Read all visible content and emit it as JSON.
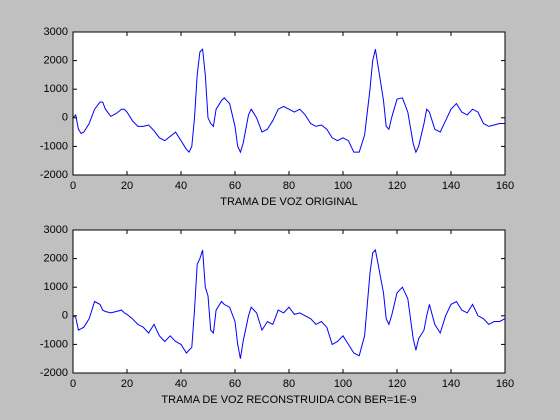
{
  "chart_data": [
    {
      "type": "line",
      "xlabel": "TRAMA DE VOZ ORIGINAL",
      "color": "#0000ff",
      "x": [
        0,
        1,
        2,
        3,
        4,
        6,
        8,
        10,
        11,
        12,
        14,
        16,
        18,
        19,
        20,
        22,
        24,
        26,
        28,
        30,
        32,
        34,
        36,
        38,
        40,
        42,
        43,
        44,
        45,
        46,
        47,
        48,
        49,
        50,
        51,
        52,
        53,
        55,
        56,
        58,
        60,
        61,
        62,
        63,
        65,
        66,
        68,
        70,
        72,
        74,
        76,
        78,
        80,
        82,
        84,
        86,
        88,
        90,
        92,
        94,
        96,
        98,
        100,
        102,
        104,
        106,
        108,
        110,
        111,
        112,
        113,
        115,
        116,
        117,
        118,
        120,
        122,
        124,
        126,
        127,
        128,
        130,
        131,
        132,
        134,
        136,
        138,
        140,
        142,
        144,
        146,
        148,
        150,
        152,
        154,
        156,
        158,
        160
      ],
      "values": [
        0,
        100,
        -400,
        -550,
        -500,
        -200,
        300,
        550,
        550,
        300,
        50,
        150,
        300,
        300,
        200,
        -100,
        -300,
        -300,
        -250,
        -450,
        -700,
        -800,
        -650,
        -500,
        -800,
        -1100,
        -1200,
        -1000,
        0,
        1500,
        2300,
        2400,
        1500,
        0,
        -200,
        -300,
        300,
        600,
        700,
        500,
        -300,
        -1000,
        -1200,
        -900,
        100,
        300,
        0,
        -500,
        -400,
        -100,
        300,
        400,
        300,
        200,
        300,
        100,
        -200,
        -300,
        -250,
        -400,
        -700,
        -800,
        -700,
        -800,
        -1200,
        -1200,
        -600,
        1000,
        2000,
        2400,
        1800,
        600,
        -300,
        -400,
        0,
        650,
        700,
        200,
        -900,
        -1200,
        -1000,
        -200,
        300,
        200,
        -400,
        -500,
        -100,
        300,
        500,
        200,
        100,
        300,
        200,
        -200,
        -300,
        -250,
        -200,
        -200
      ],
      "xlim": [
        0,
        160
      ],
      "xticks": [
        0,
        20,
        40,
        60,
        80,
        100,
        120,
        140,
        160
      ],
      "ylim": [
        -2000,
        3000
      ],
      "yticks": [
        -2000,
        -1000,
        0,
        1000,
        2000,
        3000
      ]
    },
    {
      "type": "line",
      "xlabel": "TRAMA DE VOZ RECONSTRUIDA CON BER=1E-9",
      "color": "#0000ff",
      "x": [
        0,
        1,
        2,
        3,
        4,
        6,
        8,
        10,
        11,
        12,
        14,
        16,
        18,
        19,
        20,
        22,
        24,
        26,
        28,
        30,
        32,
        34,
        36,
        38,
        40,
        42,
        43,
        44,
        45,
        46,
        47,
        48,
        49,
        50,
        51,
        52,
        53,
        55,
        56,
        58,
        60,
        61,
        62,
        63,
        65,
        66,
        68,
        70,
        72,
        74,
        76,
        78,
        80,
        82,
        84,
        86,
        88,
        90,
        92,
        94,
        96,
        98,
        100,
        102,
        104,
        106,
        108,
        110,
        111,
        112,
        113,
        115,
        116,
        117,
        118,
        120,
        122,
        124,
        126,
        127,
        128,
        130,
        131,
        132,
        134,
        136,
        138,
        140,
        142,
        144,
        146,
        148,
        150,
        152,
        154,
        156,
        158,
        160
      ],
      "values": [
        0,
        -50,
        -500,
        -450,
        -400,
        -100,
        500,
        400,
        200,
        150,
        100,
        150,
        200,
        100,
        50,
        -100,
        -300,
        -400,
        -600,
        -300,
        -700,
        -900,
        -700,
        -900,
        -1000,
        -1300,
        -1200,
        -1100,
        200,
        1800,
        2000,
        2300,
        1000,
        700,
        -500,
        -600,
        200,
        500,
        400,
        300,
        -200,
        -1000,
        -1500,
        -900,
        0,
        300,
        100,
        -500,
        -200,
        -300,
        200,
        100,
        300,
        50,
        100,
        0,
        -100,
        -300,
        -200,
        -400,
        -1000,
        -900,
        -700,
        -1000,
        -1300,
        -1400,
        -700,
        1500,
        2200,
        2300,
        1800,
        800,
        -100,
        -300,
        0,
        800,
        1000,
        600,
        -800,
        -1200,
        -800,
        -500,
        0,
        400,
        -300,
        -600,
        0,
        400,
        500,
        200,
        100,
        400,
        0,
        -100,
        -300,
        -200,
        -200,
        -100
      ],
      "xlim": [
        0,
        160
      ],
      "xticks": [
        0,
        20,
        40,
        60,
        80,
        100,
        120,
        140,
        160
      ],
      "ylim": [
        -2000,
        3000
      ],
      "yticks": [
        -2000,
        -1000,
        0,
        1000,
        2000,
        3000
      ]
    }
  ]
}
